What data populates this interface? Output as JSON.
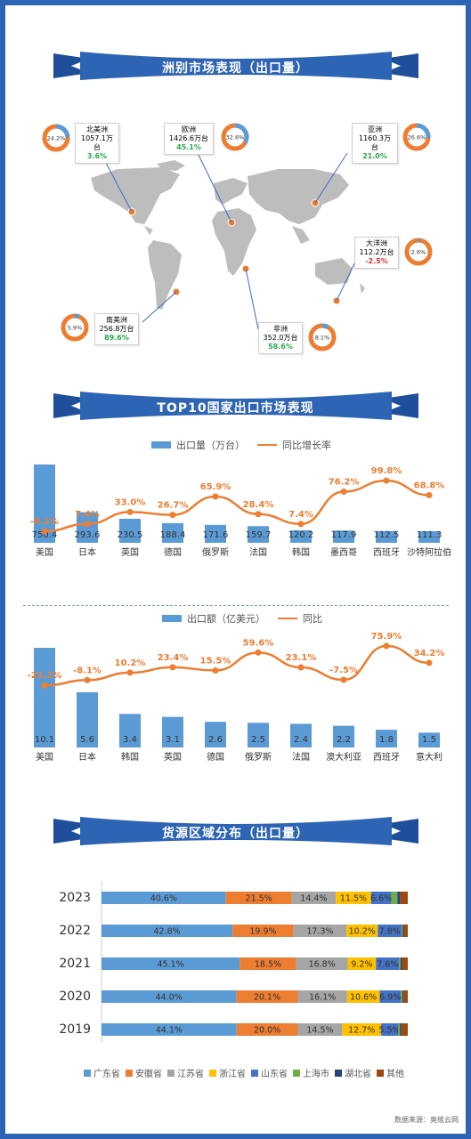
{
  "colors": {
    "blue": "#5b9bd5",
    "orange": "#ed7d31",
    "gray": "#a5a5a5",
    "yellow": "#ffc000",
    "navy": "#4472c4",
    "green": "#70ad47",
    "darkblue": "#264478",
    "brown": "#9e480e",
    "banner": "#2e64b4"
  },
  "section1": {
    "title": "洲别市场表现（出口量）",
    "regions": [
      {
        "name": "北美洲",
        "volume": "1057.1万台",
        "growth": "3.6%",
        "share": "24.2%",
        "share_value": 24.2
      },
      {
        "name": "欧洲",
        "volume": "1426.6万台",
        "growth": "45.1%",
        "share": "32.6%",
        "share_value": 32.6
      },
      {
        "name": "亚洲",
        "volume": "1160.3万台",
        "growth": "21.0%",
        "share": "26.6%",
        "share_value": 26.6
      },
      {
        "name": "大洋洲",
        "volume": "112.2万台",
        "growth": "-2.5%",
        "share": "2.6%",
        "share_value": 2.6
      },
      {
        "name": "南美洲",
        "volume": "256.8万台",
        "growth": "89.6%",
        "share": "5.9%",
        "share_value": 5.9
      },
      {
        "name": "非洲",
        "volume": "352.0万台",
        "growth": "58.6%",
        "share": "8.1%",
        "share_value": 8.1
      }
    ]
  },
  "section2": {
    "title": "TOP10国家出口市场表现",
    "chart_data": [
      {
        "type": "bar",
        "categories": [
          "美国",
          "日本",
          "英国",
          "德国",
          "俄罗斯",
          "法国",
          "韩国",
          "墨西哥",
          "西班牙",
          "沙特阿拉伯"
        ],
        "series": [
          {
            "name": "出口量（万台）",
            "values": [
              750.4,
              293.6,
              230.5,
              188.4,
              171.6,
              159.7,
              120.2,
              117.9,
              112.5,
              111.3
            ]
          },
          {
            "name": "同比增长率",
            "values": [
              -8.1,
              7.4,
              33.0,
              26.7,
              65.9,
              28.4,
              7.4,
              76.2,
              99.8,
              68.8
            ]
          }
        ],
        "bar_labels": [
          "750.4",
          "293.6",
          "230.5",
          "188.4",
          "171.6",
          "159.7",
          "120.2",
          "117.9",
          "112.5",
          "111.3"
        ],
        "line_labels": [
          "-8.1%",
          "7.4%",
          "33.0%",
          "26.7%",
          "65.9%",
          "28.4%",
          "7.4%",
          "76.2%",
          "99.8%",
          "68.8%"
        ]
      },
      {
        "type": "bar",
        "categories": [
          "美国",
          "日本",
          "韩国",
          "英国",
          "德国",
          "俄罗斯",
          "法国",
          "澳大利亚",
          "西班牙",
          "意大利"
        ],
        "series": [
          {
            "name": "出口额（亿美元）",
            "values": [
              10.1,
              5.6,
              3.4,
              3.1,
              2.6,
              2.5,
              2.4,
              2.2,
              1.8,
              1.5
            ]
          },
          {
            "name": "同比",
            "values": [
              -21.1,
              -8.1,
              10.2,
              23.4,
              15.5,
              59.6,
              23.1,
              -7.5,
              75.9,
              34.2
            ]
          }
        ],
        "bar_labels": [
          "10.1",
          "5.6",
          "3.4",
          "3.1",
          "2.6",
          "2.5",
          "2.4",
          "2.2",
          "1.8",
          "1.5"
        ],
        "line_labels": [
          "-21.1%",
          "-8.1%",
          "10.2%",
          "23.4%",
          "15.5%",
          "59.6%",
          "23.1%",
          "-7.5%",
          "75.9%",
          "34.2%"
        ]
      }
    ]
  },
  "section3": {
    "title": "货源区域分布（出口量）",
    "chart_data": {
      "type": "bar",
      "stacked": true,
      "orientation": "horizontal",
      "categories": [
        "2023",
        "2022",
        "2021",
        "2020",
        "2019"
      ],
      "series": [
        {
          "name": "广东省",
          "values": [
            40.6,
            42.8,
            45.1,
            44.0,
            44.1
          ],
          "labels": [
            "40.6%",
            "42.8%",
            "45.1%",
            "44.0%",
            "44.1%"
          ]
        },
        {
          "name": "安徽省",
          "values": [
            21.5,
            19.9,
            18.5,
            20.1,
            20.0
          ],
          "labels": [
            "21.5%",
            "19.9%",
            "18.5%",
            "20.1%",
            "20.0%"
          ]
        },
        {
          "name": "江苏省",
          "values": [
            14.4,
            17.3,
            16.8,
            16.1,
            14.5
          ],
          "labels": [
            "14.4%",
            "17.3%",
            "16.8%",
            "16.1%",
            "14.5%"
          ]
        },
        {
          "name": "浙江省",
          "values": [
            11.5,
            10.2,
            9.2,
            10.6,
            12.7
          ],
          "labels": [
            "11.5%",
            "10.2%",
            "9.2%",
            "10.6%",
            "12.7%"
          ]
        },
        {
          "name": "山东省",
          "values": [
            6.6,
            7.8,
            7.6,
            6.9,
            5.5
          ],
          "labels": [
            "6.6%",
            "7.8%",
            "7.6%",
            "6.9%",
            "5.5%"
          ]
        },
        {
          "name": "上海市",
          "values": [
            2.0,
            0.3,
            0.4,
            0.5,
            0.6
          ],
          "labels": [
            "",
            "",
            "",
            "",
            ""
          ]
        },
        {
          "name": "湖北省",
          "values": [
            1.0,
            0.4,
            0.5,
            0.4,
            0.5
          ],
          "labels": [
            "",
            "",
            "",
            "",
            ""
          ]
        },
        {
          "name": "其他",
          "values": [
            2.4,
            1.3,
            1.9,
            1.4,
            2.1
          ],
          "labels": [
            "",
            "",
            "",
            "",
            ""
          ]
        }
      ],
      "legend_position": "bottom"
    }
  },
  "source": "数据来源：奥维云网"
}
